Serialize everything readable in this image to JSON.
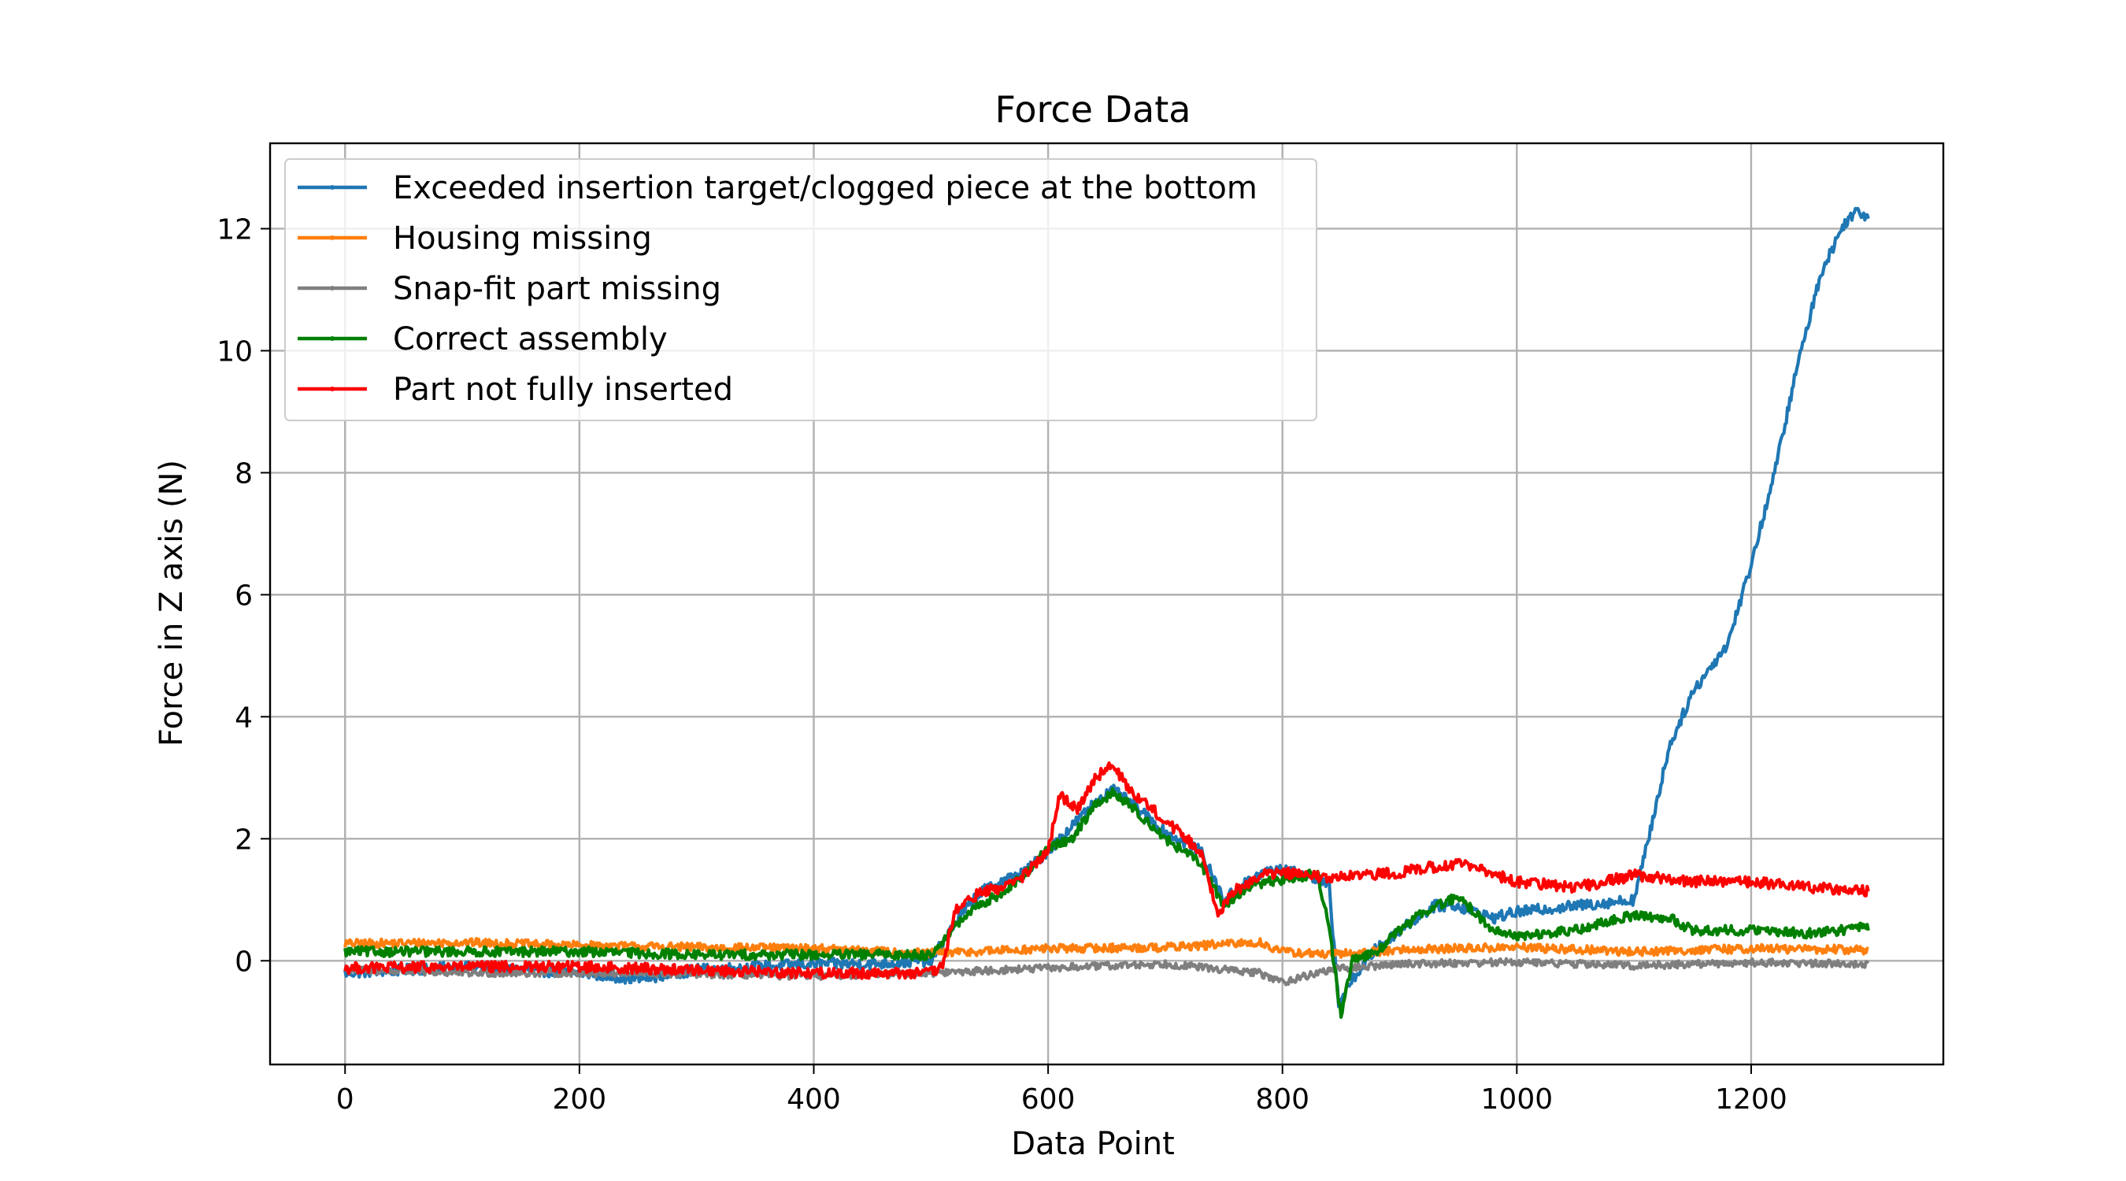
{
  "chart_data": {
    "type": "line",
    "title": "Force Data",
    "xlabel": "Data Point",
    "ylabel": "Force in Z axis (N)",
    "xlim": [
      -64,
      1364
    ],
    "ylim": [
      -1.7,
      13.4
    ],
    "xticks": [
      0,
      200,
      400,
      600,
      800,
      1000,
      1200
    ],
    "yticks": [
      0,
      2,
      4,
      6,
      8,
      10,
      12
    ],
    "grid": true,
    "legend_position": "top-left",
    "series": [
      {
        "name": "Exceeded insertion target/clogged piece at the bottom",
        "color": "#1f77b4",
        "x": [
          0,
          50,
          100,
          150,
          200,
          250,
          300,
          350,
          400,
          450,
          500,
          520,
          540,
          560,
          580,
          600,
          620,
          640,
          655,
          670,
          700,
          730,
          750,
          770,
          790,
          810,
          830,
          840,
          848,
          860,
          880,
          900,
          930,
          950,
          980,
          1000,
          1050,
          1100,
          1110,
          1130,
          1150,
          1180,
          1200,
          1220,
          1240,
          1260,
          1280,
          1290,
          1300
        ],
        "y": [
          -0.2,
          -0.15,
          -0.1,
          -0.15,
          -0.2,
          -0.3,
          -0.15,
          -0.1,
          -0.05,
          -0.05,
          0.0,
          0.6,
          1.1,
          1.3,
          1.45,
          1.8,
          2.2,
          2.6,
          2.8,
          2.6,
          2.1,
          1.8,
          1.0,
          1.3,
          1.5,
          1.45,
          1.35,
          1.2,
          -0.7,
          -0.3,
          0.2,
          0.5,
          0.9,
          0.9,
          0.7,
          0.8,
          0.9,
          1.0,
          1.8,
          3.5,
          4.4,
          5.2,
          6.5,
          8.0,
          9.8,
          11.3,
          12.1,
          12.3,
          12.2
        ]
      },
      {
        "name": "Housing missing",
        "color": "#ff7f0e",
        "x": [
          0,
          100,
          200,
          300,
          400,
          500,
          600,
          700,
          780,
          800,
          840,
          900,
          1000,
          1100,
          1200,
          1300
        ],
        "y": [
          0.28,
          0.3,
          0.25,
          0.22,
          0.2,
          0.12,
          0.2,
          0.22,
          0.3,
          0.15,
          0.1,
          0.18,
          0.22,
          0.15,
          0.2,
          0.18
        ]
      },
      {
        "name": "Snap-fit part missing",
        "color": "#7f7f7f",
        "x": [
          0,
          100,
          200,
          300,
          400,
          500,
          600,
          700,
          780,
          800,
          840,
          900,
          1000,
          1100,
          1200,
          1300
        ],
        "y": [
          -0.15,
          -0.2,
          -0.2,
          -0.22,
          -0.25,
          -0.2,
          -0.12,
          -0.05,
          -0.2,
          -0.35,
          -0.15,
          -0.05,
          -0.02,
          -0.08,
          -0.03,
          -0.05
        ]
      },
      {
        "name": "Correct assembly",
        "color": "#008000",
        "x": [
          0,
          100,
          200,
          300,
          400,
          500,
          520,
          540,
          560,
          580,
          600,
          620,
          640,
          655,
          670,
          700,
          730,
          750,
          770,
          790,
          810,
          830,
          840,
          850,
          860,
          880,
          900,
          920,
          950,
          980,
          1000,
          1050,
          1100,
          1130,
          1150,
          1200,
          1250,
          1300
        ],
        "y": [
          0.15,
          0.15,
          0.15,
          0.1,
          0.1,
          0.1,
          0.55,
          0.9,
          1.1,
          1.4,
          1.85,
          2.0,
          2.55,
          2.75,
          2.55,
          2.0,
          1.6,
          0.9,
          1.2,
          1.3,
          1.35,
          1.45,
          0.5,
          -0.9,
          0.0,
          0.15,
          0.5,
          0.8,
          1.05,
          0.5,
          0.4,
          0.5,
          0.75,
          0.7,
          0.5,
          0.5,
          0.45,
          0.55
        ]
      },
      {
        "name": "Part not fully inserted",
        "color": "#ff0000",
        "x": [
          0,
          100,
          200,
          300,
          400,
          500,
          510,
          520,
          540,
          560,
          580,
          600,
          610,
          625,
          640,
          655,
          670,
          700,
          730,
          745,
          760,
          780,
          800,
          840,
          900,
          950,
          1000,
          1050,
          1100,
          1150,
          1200,
          1250,
          1300
        ],
        "y": [
          -0.12,
          -0.1,
          -0.1,
          -0.15,
          -0.2,
          -0.2,
          -0.1,
          0.8,
          1.1,
          1.2,
          1.4,
          1.8,
          2.7,
          2.5,
          3.0,
          3.2,
          2.8,
          2.3,
          1.8,
          0.8,
          1.15,
          1.4,
          1.45,
          1.35,
          1.45,
          1.6,
          1.3,
          1.2,
          1.4,
          1.3,
          1.3,
          1.2,
          1.15
        ]
      }
    ]
  }
}
